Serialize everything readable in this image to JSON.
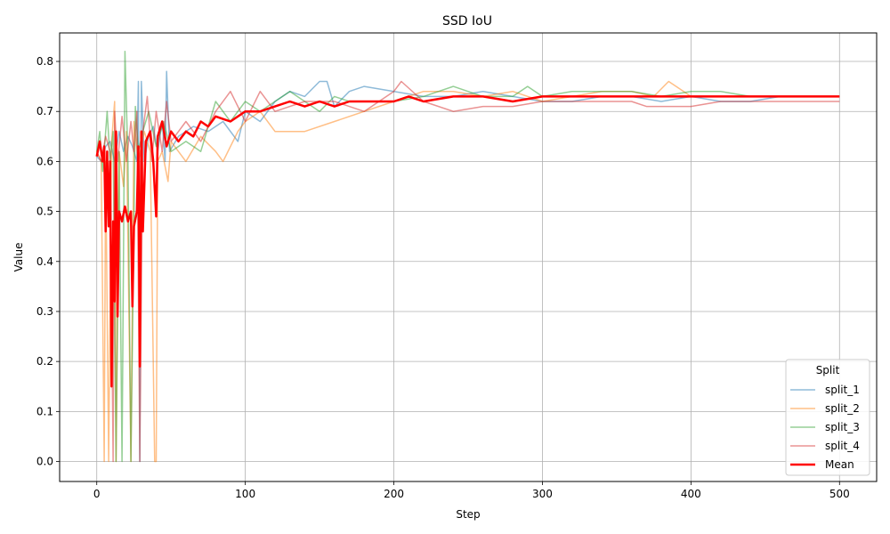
{
  "chart_data": {
    "type": "line",
    "title": "SSD IoU",
    "xlabel": "Step",
    "ylabel": "Value",
    "xlim": [
      -25,
      525
    ],
    "ylim": [
      -0.04,
      0.857
    ],
    "x_ticks": [
      0,
      100,
      200,
      300,
      400,
      500
    ],
    "y_ticks": [
      0.0,
      0.1,
      0.2,
      0.3,
      0.4,
      0.5,
      0.6,
      0.7,
      0.8
    ],
    "x_tick_labels": [
      "0",
      "100",
      "200",
      "300",
      "400",
      "500"
    ],
    "y_tick_labels": [
      "0.0",
      "0.1",
      "0.2",
      "0.3",
      "0.4",
      "0.5",
      "0.6",
      "0.7",
      "0.8"
    ],
    "grid": true,
    "legend": {
      "title": "Split",
      "placement": "lower-right"
    },
    "series": [
      {
        "name": "split_1",
        "color": "#1f77b4",
        "opacity": 0.5,
        "width": 1.5,
        "points": [
          [
            0,
            0.61
          ],
          [
            3,
            0.6
          ],
          [
            6,
            0.63
          ],
          [
            9,
            0.64
          ],
          [
            12,
            0.6
          ],
          [
            15,
            0.66
          ],
          [
            18,
            0.62
          ],
          [
            21,
            0.65
          ],
          [
            24,
            0.63
          ],
          [
            27,
            0.6
          ],
          [
            28,
            0.76
          ],
          [
            29,
            0.0
          ],
          [
            30,
            0.76
          ],
          [
            32,
            0.6
          ],
          [
            35,
            0.65
          ],
          [
            38,
            0.67
          ],
          [
            41,
            0.62
          ],
          [
            44,
            0.68
          ],
          [
            46,
            0.6
          ],
          [
            47,
            0.78
          ],
          [
            49,
            0.62
          ],
          [
            55,
            0.65
          ],
          [
            65,
            0.67
          ],
          [
            75,
            0.66
          ],
          [
            85,
            0.68
          ],
          [
            95,
            0.64
          ],
          [
            100,
            0.7
          ],
          [
            110,
            0.68
          ],
          [
            120,
            0.72
          ],
          [
            130,
            0.74
          ],
          [
            140,
            0.73
          ],
          [
            150,
            0.76
          ],
          [
            155,
            0.76
          ],
          [
            160,
            0.71
          ],
          [
            170,
            0.74
          ],
          [
            180,
            0.75
          ],
          [
            200,
            0.74
          ],
          [
            220,
            0.73
          ],
          [
            240,
            0.73
          ],
          [
            260,
            0.74
          ],
          [
            280,
            0.73
          ],
          [
            300,
            0.72
          ],
          [
            320,
            0.72
          ],
          [
            340,
            0.73
          ],
          [
            360,
            0.73
          ],
          [
            380,
            0.72
          ],
          [
            400,
            0.73
          ],
          [
            420,
            0.72
          ],
          [
            440,
            0.72
          ],
          [
            460,
            0.73
          ],
          [
            480,
            0.73
          ],
          [
            500,
            0.73
          ]
        ]
      },
      {
        "name": "split_2",
        "color": "#ff7f0e",
        "opacity": 0.5,
        "width": 1.5,
        "points": [
          [
            0,
            0.62
          ],
          [
            3,
            0.6
          ],
          [
            5,
            0.0
          ],
          [
            6,
            0.6
          ],
          [
            8,
            0.0
          ],
          [
            10,
            0.64
          ],
          [
            12,
            0.72
          ],
          [
            13,
            0.0
          ],
          [
            15,
            0.62
          ],
          [
            18,
            0.55
          ],
          [
            20,
            0.66
          ],
          [
            23,
            0.0
          ],
          [
            25,
            0.68
          ],
          [
            28,
            0.6
          ],
          [
            32,
            0.66
          ],
          [
            36,
            0.62
          ],
          [
            39,
            0.0
          ],
          [
            40,
            0.0
          ],
          [
            41,
            0.6
          ],
          [
            44,
            0.62
          ],
          [
            48,
            0.56
          ],
          [
            50,
            0.64
          ],
          [
            55,
            0.62
          ],
          [
            60,
            0.6
          ],
          [
            70,
            0.65
          ],
          [
            80,
            0.62
          ],
          [
            85,
            0.6
          ],
          [
            95,
            0.66
          ],
          [
            100,
            0.68
          ],
          [
            110,
            0.7
          ],
          [
            120,
            0.66
          ],
          [
            140,
            0.66
          ],
          [
            160,
            0.68
          ],
          [
            180,
            0.7
          ],
          [
            200,
            0.72
          ],
          [
            220,
            0.74
          ],
          [
            240,
            0.74
          ],
          [
            260,
            0.73
          ],
          [
            280,
            0.74
          ],
          [
            300,
            0.72
          ],
          [
            320,
            0.73
          ],
          [
            340,
            0.74
          ],
          [
            360,
            0.74
          ],
          [
            375,
            0.73
          ],
          [
            385,
            0.76
          ],
          [
            390,
            0.75
          ],
          [
            400,
            0.73
          ],
          [
            420,
            0.73
          ],
          [
            440,
            0.73
          ],
          [
            460,
            0.73
          ],
          [
            480,
            0.73
          ],
          [
            500,
            0.73
          ]
        ]
      },
      {
        "name": "split_3",
        "color": "#2ca02c",
        "opacity": 0.5,
        "width": 1.5,
        "points": [
          [
            0,
            0.62
          ],
          [
            2,
            0.66
          ],
          [
            4,
            0.58
          ],
          [
            7,
            0.7
          ],
          [
            9,
            0.6
          ],
          [
            11,
            0.66
          ],
          [
            13,
            0.0
          ],
          [
            15,
            0.62
          ],
          [
            17,
            0.0
          ],
          [
            19,
            0.82
          ],
          [
            21,
            0.6
          ],
          [
            23,
            0.0
          ],
          [
            26,
            0.71
          ],
          [
            28,
            0.62
          ],
          [
            31,
            0.66
          ],
          [
            35,
            0.7
          ],
          [
            40,
            0.63
          ],
          [
            45,
            0.68
          ],
          [
            50,
            0.62
          ],
          [
            60,
            0.64
          ],
          [
            70,
            0.62
          ],
          [
            80,
            0.72
          ],
          [
            90,
            0.68
          ],
          [
            100,
            0.72
          ],
          [
            110,
            0.7
          ],
          [
            120,
            0.72
          ],
          [
            130,
            0.74
          ],
          [
            140,
            0.72
          ],
          [
            150,
            0.7
          ],
          [
            160,
            0.73
          ],
          [
            170,
            0.72
          ],
          [
            180,
            0.72
          ],
          [
            200,
            0.72
          ],
          [
            220,
            0.73
          ],
          [
            240,
            0.75
          ],
          [
            260,
            0.73
          ],
          [
            280,
            0.73
          ],
          [
            290,
            0.75
          ],
          [
            300,
            0.73
          ],
          [
            320,
            0.74
          ],
          [
            340,
            0.74
          ],
          [
            360,
            0.74
          ],
          [
            380,
            0.73
          ],
          [
            400,
            0.74
          ],
          [
            420,
            0.74
          ],
          [
            440,
            0.73
          ],
          [
            460,
            0.73
          ],
          [
            480,
            0.73
          ],
          [
            500,
            0.73
          ]
        ]
      },
      {
        "name": "split_4",
        "color": "#d62728",
        "opacity": 0.5,
        "width": 1.5,
        "points": [
          [
            0,
            0.62
          ],
          [
            3,
            0.6
          ],
          [
            6,
            0.65
          ],
          [
            9,
            0.62
          ],
          [
            11,
            0.0
          ],
          [
            12,
            0.7
          ],
          [
            14,
            0.6
          ],
          [
            17,
            0.69
          ],
          [
            20,
            0.6
          ],
          [
            23,
            0.68
          ],
          [
            25,
            0.62
          ],
          [
            27,
            0.7
          ],
          [
            29,
            0.0
          ],
          [
            31,
            0.66
          ],
          [
            34,
            0.73
          ],
          [
            37,
            0.6
          ],
          [
            40,
            0.7
          ],
          [
            44,
            0.62
          ],
          [
            47,
            0.72
          ],
          [
            50,
            0.64
          ],
          [
            60,
            0.68
          ],
          [
            70,
            0.64
          ],
          [
            80,
            0.7
          ],
          [
            90,
            0.74
          ],
          [
            100,
            0.68
          ],
          [
            110,
            0.74
          ],
          [
            120,
            0.7
          ],
          [
            140,
            0.72
          ],
          [
            160,
            0.72
          ],
          [
            180,
            0.7
          ],
          [
            200,
            0.74
          ],
          [
            205,
            0.76
          ],
          [
            220,
            0.72
          ],
          [
            240,
            0.7
          ],
          [
            260,
            0.71
          ],
          [
            280,
            0.71
          ],
          [
            300,
            0.72
          ],
          [
            320,
            0.72
          ],
          [
            340,
            0.72
          ],
          [
            360,
            0.72
          ],
          [
            370,
            0.71
          ],
          [
            380,
            0.71
          ],
          [
            400,
            0.71
          ],
          [
            420,
            0.72
          ],
          [
            440,
            0.72
          ],
          [
            460,
            0.72
          ],
          [
            480,
            0.72
          ],
          [
            500,
            0.72
          ]
        ]
      },
      {
        "name": "Mean",
        "color": "#ff0000",
        "opacity": 1,
        "width": 2.5,
        "points": [
          [
            0,
            0.61
          ],
          [
            2,
            0.64
          ],
          [
            4,
            0.6
          ],
          [
            5,
            0.63
          ],
          [
            6,
            0.46
          ],
          [
            7,
            0.62
          ],
          [
            8,
            0.47
          ],
          [
            9,
            0.6
          ],
          [
            10,
            0.15
          ],
          [
            11,
            0.48
          ],
          [
            12,
            0.32
          ],
          [
            13,
            0.66
          ],
          [
            14,
            0.29
          ],
          [
            15,
            0.5
          ],
          [
            17,
            0.48
          ],
          [
            19,
            0.51
          ],
          [
            21,
            0.48
          ],
          [
            23,
            0.5
          ],
          [
            24,
            0.31
          ],
          [
            25,
            0.47
          ],
          [
            27,
            0.5
          ],
          [
            28,
            0.63
          ],
          [
            29,
            0.19
          ],
          [
            30,
            0.66
          ],
          [
            31,
            0.46
          ],
          [
            33,
            0.64
          ],
          [
            36,
            0.66
          ],
          [
            38,
            0.6
          ],
          [
            40,
            0.49
          ],
          [
            41,
            0.65
          ],
          [
            44,
            0.68
          ],
          [
            47,
            0.63
          ],
          [
            50,
            0.66
          ],
          [
            55,
            0.64
          ],
          [
            60,
            0.66
          ],
          [
            65,
            0.65
          ],
          [
            70,
            0.68
          ],
          [
            75,
            0.67
          ],
          [
            80,
            0.69
          ],
          [
            90,
            0.68
          ],
          [
            100,
            0.7
          ],
          [
            110,
            0.7
          ],
          [
            120,
            0.71
          ],
          [
            130,
            0.72
          ],
          [
            140,
            0.71
          ],
          [
            150,
            0.72
          ],
          [
            160,
            0.71
          ],
          [
            170,
            0.72
          ],
          [
            180,
            0.72
          ],
          [
            190,
            0.72
          ],
          [
            200,
            0.72
          ],
          [
            210,
            0.73
          ],
          [
            220,
            0.72
          ],
          [
            240,
            0.73
          ],
          [
            260,
            0.73
          ],
          [
            280,
            0.72
          ],
          [
            300,
            0.73
          ],
          [
            320,
            0.73
          ],
          [
            340,
            0.73
          ],
          [
            360,
            0.73
          ],
          [
            380,
            0.73
          ],
          [
            400,
            0.73
          ],
          [
            420,
            0.73
          ],
          [
            440,
            0.73
          ],
          [
            460,
            0.73
          ],
          [
            480,
            0.73
          ],
          [
            500,
            0.73
          ]
        ]
      }
    ]
  }
}
